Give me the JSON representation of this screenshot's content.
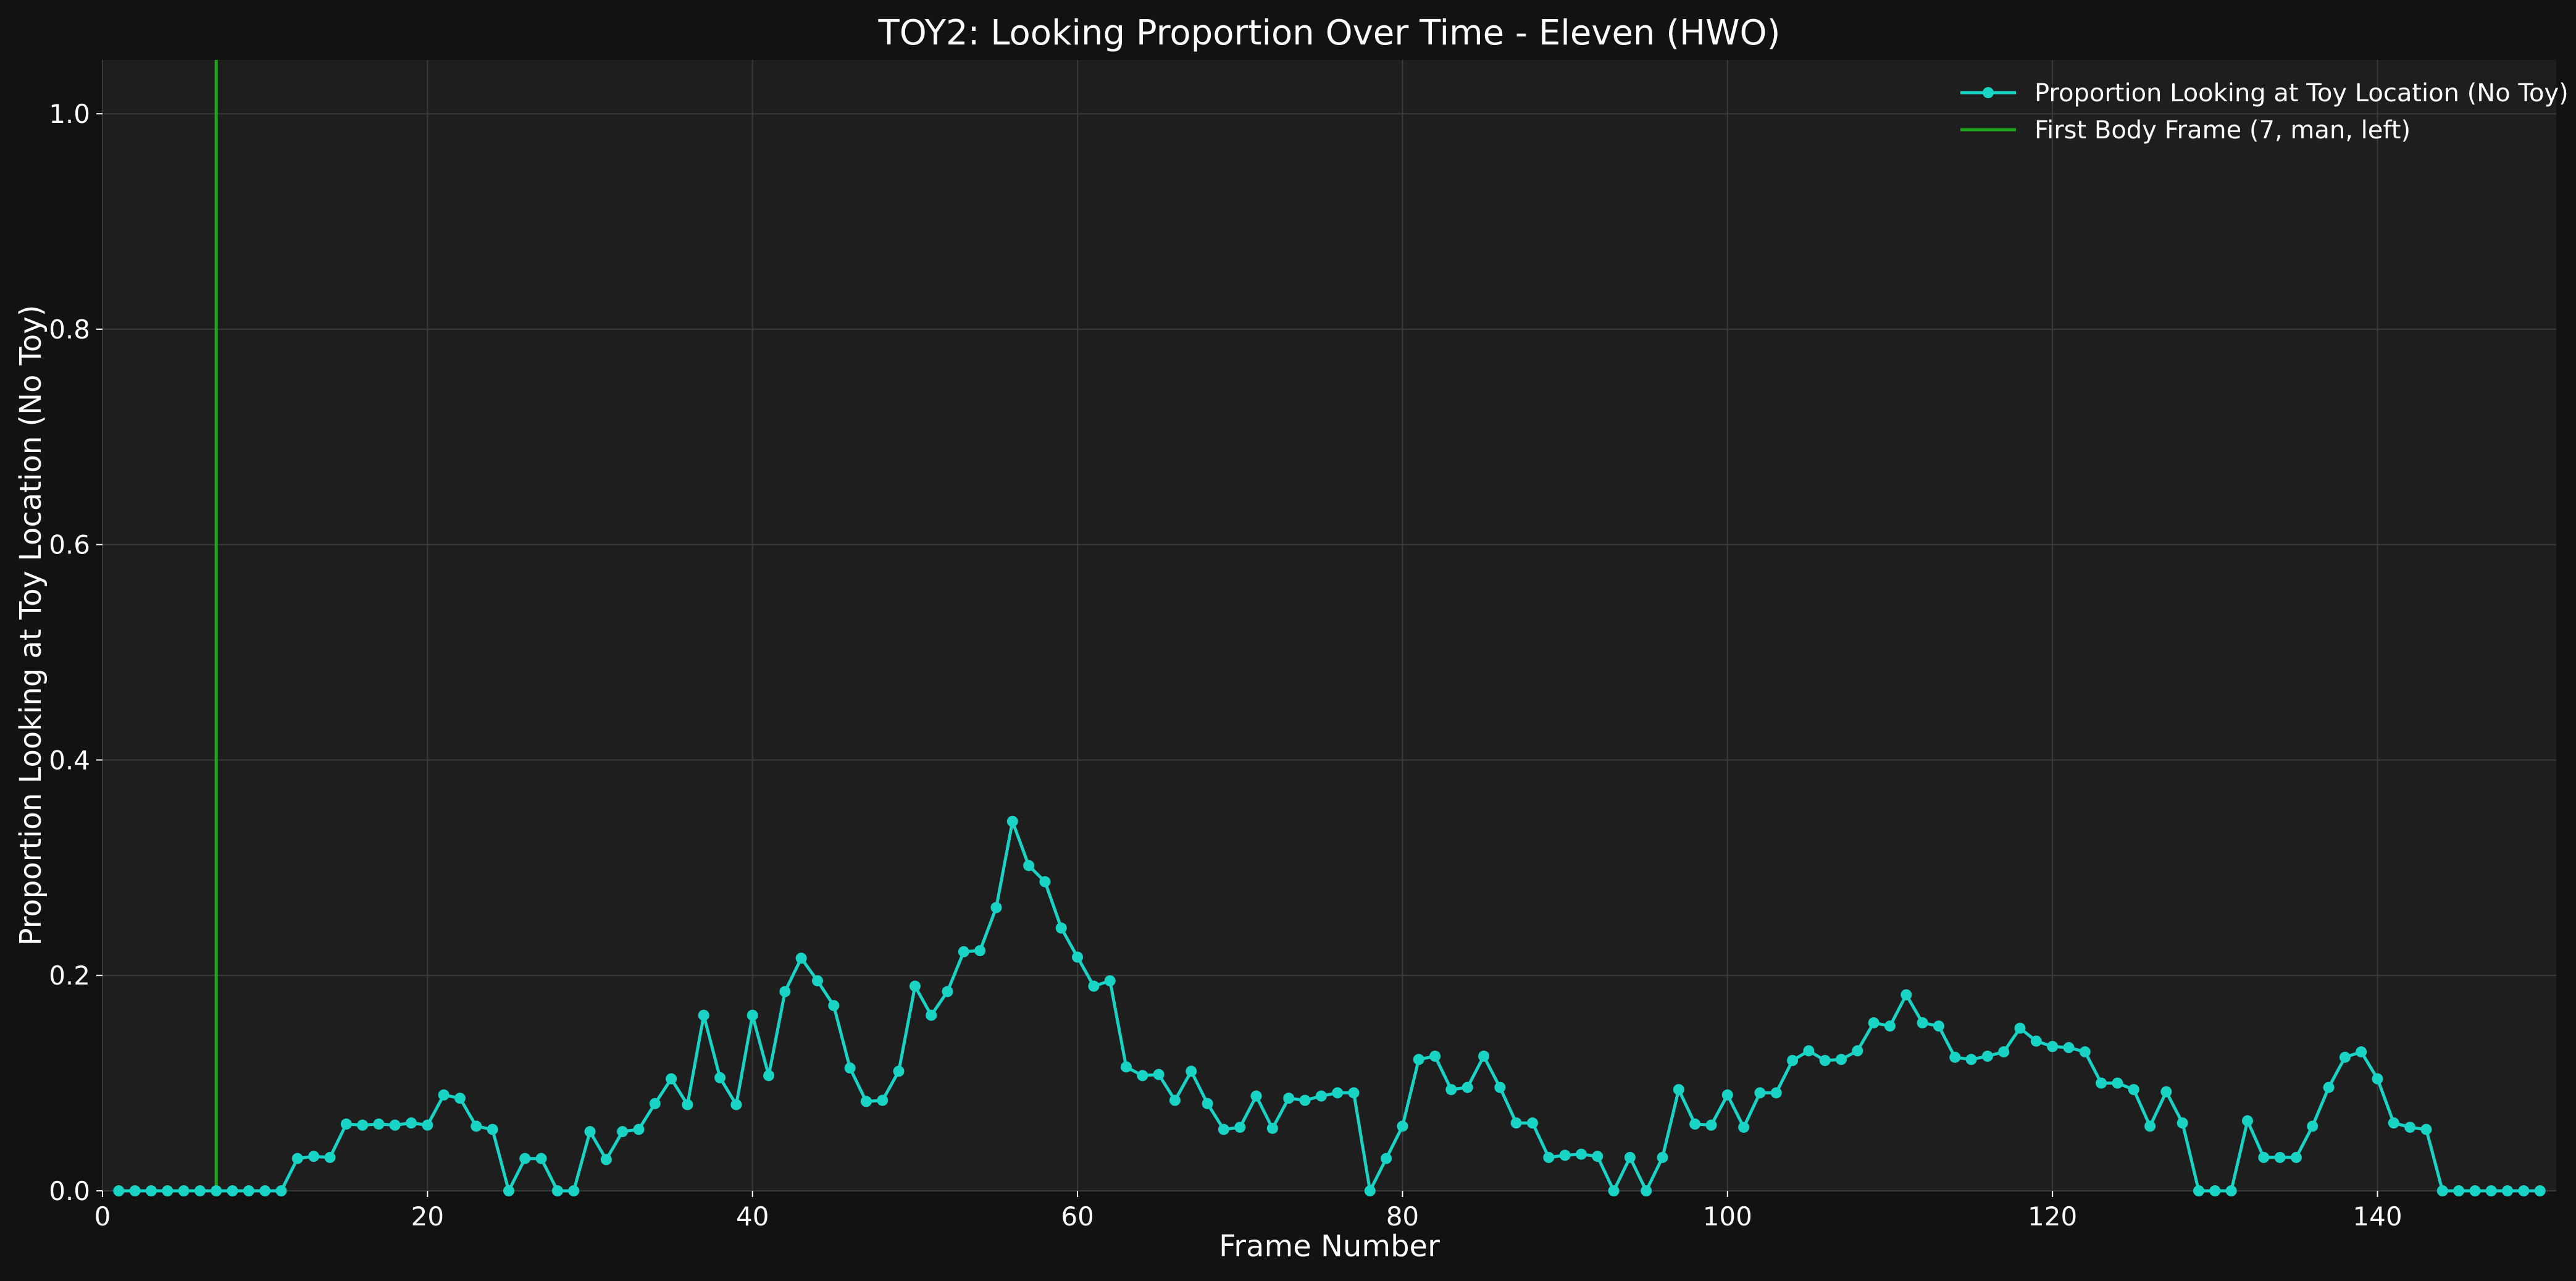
{
  "chart_data": {
    "type": "line",
    "title": "TOY2: Looking Proportion Over Time - Eleven (HWO)",
    "xlabel": "Frame Number",
    "ylabel": "Proportion Looking at Toy Location (No Toy)",
    "xlim": [
      0,
      151
    ],
    "ylim": [
      0,
      1.05
    ],
    "xticks": [
      0,
      20,
      40,
      60,
      80,
      100,
      120,
      140
    ],
    "yticks": [
      0.0,
      0.2,
      0.4,
      0.6,
      0.8,
      1.0
    ],
    "grid": true,
    "legend_position": "top-right",
    "series": [
      {
        "name": "Proportion Looking at Toy Location (No Toy)",
        "color": "#19d3c5",
        "marker": "circle",
        "x": [
          1,
          2,
          3,
          4,
          5,
          6,
          7,
          8,
          9,
          10,
          11,
          12,
          13,
          14,
          15,
          16,
          17,
          18,
          19,
          20,
          21,
          22,
          23,
          24,
          25,
          26,
          27,
          28,
          29,
          30,
          31,
          32,
          33,
          34,
          35,
          36,
          37,
          38,
          39,
          40,
          41,
          42,
          43,
          44,
          45,
          46,
          47,
          48,
          49,
          50,
          51,
          52,
          53,
          54,
          55,
          56,
          57,
          58,
          59,
          60,
          61,
          62,
          63,
          64,
          65,
          66,
          67,
          68,
          69,
          70,
          71,
          72,
          73,
          74,
          75,
          76,
          77,
          78,
          79,
          80,
          81,
          82,
          83,
          84,
          85,
          86,
          87,
          88,
          89,
          90,
          91,
          92,
          93,
          94,
          95,
          96,
          97,
          98,
          99,
          100,
          101,
          102,
          103,
          104,
          105,
          106,
          107,
          108,
          109,
          110,
          111,
          112,
          113,
          114,
          115,
          116,
          117,
          118,
          119,
          120,
          121,
          122,
          123,
          124,
          125,
          126,
          127,
          128,
          129,
          130,
          131,
          132,
          133,
          134,
          135,
          136,
          137,
          138,
          139,
          140,
          141,
          142,
          143,
          144,
          145,
          146,
          147,
          148,
          149,
          150
        ],
        "y": [
          0,
          0,
          0,
          0,
          0,
          0,
          0,
          0,
          0,
          0,
          0,
          0.03,
          0.032,
          0.031,
          0.062,
          0.061,
          0.062,
          0.061,
          0.063,
          0.061,
          0.089,
          0.086,
          0.06,
          0.057,
          0,
          0.03,
          0.03,
          0,
          0,
          0.055,
          0.029,
          0.055,
          0.057,
          0.081,
          0.104,
          0.08,
          0.163,
          0.105,
          0.08,
          0.163,
          0.107,
          0.185,
          0.216,
          0.195,
          0.172,
          0.114,
          0.083,
          0.084,
          0.111,
          0.19,
          0.163,
          0.185,
          0.222,
          0.223,
          0.263,
          0.343,
          0.302,
          0.287,
          0.244,
          0.217,
          0.19,
          0.195,
          0.115,
          0.107,
          0.108,
          0.084,
          0.111,
          0.081,
          0.057,
          0.059,
          0.088,
          0.058,
          0.086,
          0.084,
          0.088,
          0.091,
          0.091,
          0,
          0.03,
          0.06,
          0.122,
          0.125,
          0.094,
          0.096,
          0.125,
          0.096,
          0.063,
          0.063,
          0.031,
          0.033,
          0.034,
          0.032,
          0,
          0.031,
          0,
          0.031,
          0.094,
          0.062,
          0.061,
          0.089,
          0.059,
          0.091,
          0.091,
          0.121,
          0.13,
          0.121,
          0.122,
          0.13,
          0.156,
          0.153,
          0.182,
          0.156,
          0.153,
          0.124,
          0.122,
          0.125,
          0.129,
          0.151,
          0.139,
          0.134,
          0.133,
          0.129,
          0.1,
          0.1,
          0.094,
          0.06,
          0.092,
          0.063,
          0,
          0,
          0,
          0.065,
          0.031,
          0.031,
          0.031,
          0.06,
          0.096,
          0.124,
          0.129,
          0.104,
          0.063,
          0.059,
          0.057,
          0,
          0,
          0,
          0,
          0,
          0,
          0
        ]
      }
    ],
    "vline": {
      "name": "First Body Frame (7, man, left)",
      "x": 7,
      "color": "#1ea81e"
    }
  },
  "colors": {
    "background": "#121212",
    "plot_background": "#1e1e1e",
    "grid": "#3a3a3a",
    "text": "#ffffff"
  }
}
